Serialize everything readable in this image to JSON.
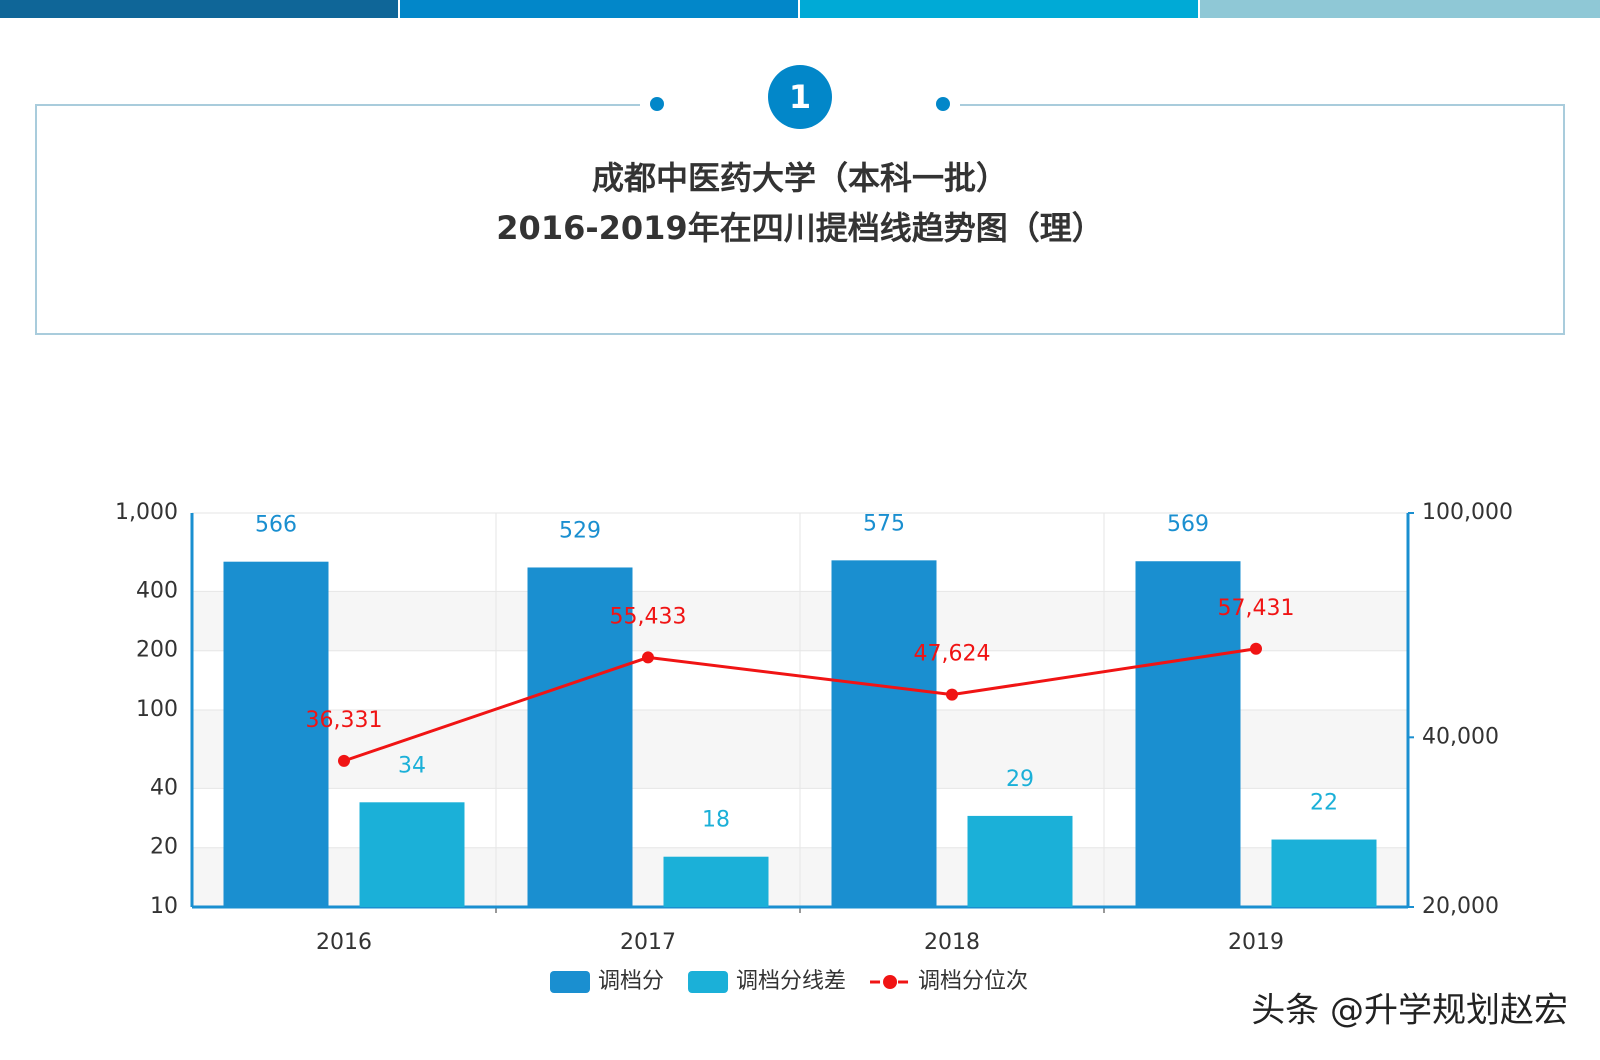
{
  "header": {
    "number": "1",
    "title_lines": [
      "成都中医药大学（本科一批）",
      "2016-2019年在四川提档线趋势图（理）"
    ]
  },
  "chart_data": {
    "type": "bar",
    "categories": [
      "2016",
      "2017",
      "2018",
      "2019"
    ],
    "series": [
      {
        "name": "调档分",
        "color": "#1a8fd0",
        "values": [
          566,
          529,
          575,
          569
        ]
      },
      {
        "name": "调档分线差",
        "color": "#1bb0d8",
        "values": [
          34,
          18,
          29,
          22
        ]
      },
      {
        "name": "调档分位次",
        "type": "line",
        "axis": "y2",
        "color": "#f01414",
        "values": [
          36331,
          55433,
          47624,
          57431
        ],
        "value_labels": [
          "36,331",
          "55,433",
          "47,624",
          "57,431"
        ]
      }
    ],
    "ylim": [
      10,
      1000
    ],
    "yscale": "log",
    "yticks": [
      10,
      20,
      40,
      100,
      200,
      400,
      {
        "value": 1000,
        "label": "1,000"
      }
    ],
    "y2lim": [
      20000,
      100000
    ],
    "y2scale": "log",
    "y2ticks": [
      {
        "value": 20000,
        "label": "20,000"
      },
      {
        "value": 40000,
        "label": "40,000"
      },
      {
        "value": 100000,
        "label": "100,000"
      }
    ],
    "grid": true,
    "legend": "bottom"
  },
  "watermark": "头条 @升学规划赵宏"
}
